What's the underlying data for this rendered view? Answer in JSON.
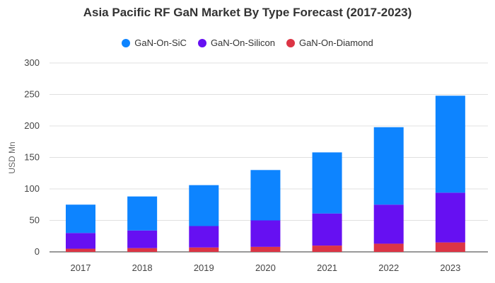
{
  "chart_data": {
    "type": "bar",
    "stacked": true,
    "title": "Asia Pacific RF GaN Market By Type Forecast (2017-2023)",
    "ylabel": "USD Mn",
    "xlabel": "",
    "ylim": [
      0,
      300
    ],
    "yticks": [
      0,
      50,
      100,
      150,
      200,
      250,
      300
    ],
    "grid": true,
    "legend_position": "top",
    "categories": [
      "2017",
      "2018",
      "2019",
      "2020",
      "2021",
      "2022",
      "2023"
    ],
    "series": [
      {
        "name": "GaN-On-Diamond",
        "color": "#dc3545",
        "values": [
          5,
          6,
          7,
          8,
          10,
          13,
          15
        ]
      },
      {
        "name": "GaN-On-Silicon",
        "color": "#6610f2",
        "values": [
          25,
          28,
          34,
          42,
          51,
          62,
          79
        ]
      },
      {
        "name": "GaN-On-SiC",
        "color": "#0d84ff",
        "values": [
          45,
          54,
          65,
          80,
          97,
          123,
          154
        ]
      }
    ],
    "legend_order": [
      "GaN-On-SiC",
      "GaN-On-Silicon",
      "GaN-On-Diamond"
    ]
  }
}
